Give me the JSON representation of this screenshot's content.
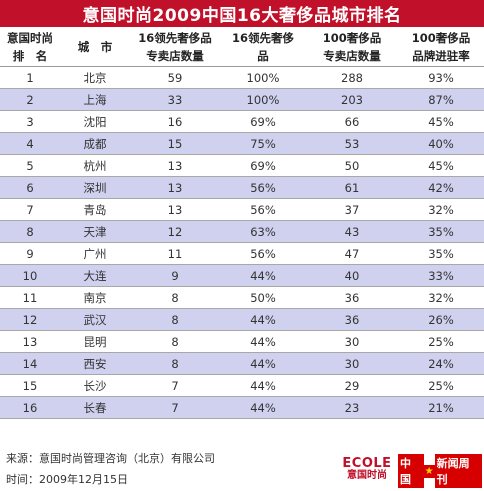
{
  "title": "意国时尚2009中国16大奢侈品城市排名",
  "headers": [
    [
      "意国时尚",
      "排　名"
    ],
    [
      "城　市"
    ],
    [
      "16领先奢侈品",
      "专卖店数量"
    ],
    [
      "16领先奢侈",
      "品"
    ],
    [
      "100奢侈品",
      "专卖店数量"
    ],
    [
      "100奢侈品",
      "品牌进驻率"
    ]
  ],
  "rows": [
    [
      "1",
      "北京",
      "59",
      "100%",
      "288",
      "93%"
    ],
    [
      "2",
      "上海",
      "33",
      "100%",
      "203",
      "87%"
    ],
    [
      "3",
      "沈阳",
      "16",
      "69%",
      "66",
      "45%"
    ],
    [
      "4",
      "成都",
      "15",
      "75%",
      "53",
      "40%"
    ],
    [
      "5",
      "杭州",
      "13",
      "69%",
      "50",
      "45%"
    ],
    [
      "6",
      "深圳",
      "13",
      "56%",
      "61",
      "42%"
    ],
    [
      "7",
      "青岛",
      "13",
      "56%",
      "37",
      "32%"
    ],
    [
      "8",
      "天津",
      "12",
      "63%",
      "43",
      "35%"
    ],
    [
      "9",
      "广州",
      "11",
      "56%",
      "47",
      "35%"
    ],
    [
      "10",
      "大连",
      "9",
      "44%",
      "40",
      "33%"
    ],
    [
      "11",
      "南京",
      "8",
      "50%",
      "36",
      "32%"
    ],
    [
      "12",
      "武汉",
      "8",
      "44%",
      "36",
      "26%"
    ],
    [
      "13",
      "昆明",
      "8",
      "44%",
      "30",
      "25%"
    ],
    [
      "14",
      "西安",
      "8",
      "44%",
      "30",
      "24%"
    ],
    [
      "15",
      "长沙",
      "7",
      "44%",
      "29",
      "25%"
    ],
    [
      "16",
      "长春",
      "7",
      "44%",
      "23",
      "21%"
    ]
  ],
  "footer": {
    "source": "来源：意国时尚管理咨询（北京）有限公司",
    "time": "时间：2009年12月15日"
  },
  "logos": {
    "ecole_en": "ECOLE",
    "ecole_cn": "意国时尚",
    "cnw_left": "中国",
    "cnw_right": "新闻周刊"
  },
  "colors": {
    "title_bg": "#c0102a",
    "stripe": "#cfd1ef"
  }
}
